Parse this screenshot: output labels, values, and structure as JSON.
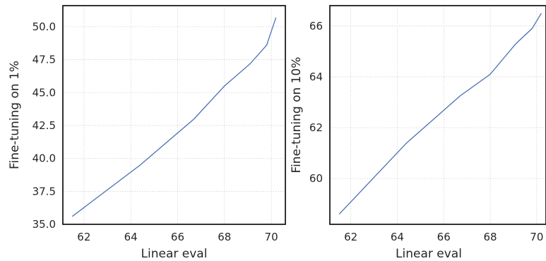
{
  "chart_data": [
    {
      "type": "line",
      "xlabel": "Linear eval",
      "ylabel": "Fine-tuning on 1%",
      "xlim": [
        61.1,
        70.6
      ],
      "ylim": [
        35.0,
        51.6
      ],
      "xticks": [
        "62",
        "64",
        "66",
        "68",
        "70"
      ],
      "yticks": [
        "35.0",
        "37.5",
        "40.0",
        "42.5",
        "45.0",
        "47.5",
        "50.0"
      ],
      "grid": true,
      "series": [
        {
          "color": "#4c72b0",
          "x": [
            61.5,
            64.4,
            66.7,
            68.0,
            69.1,
            69.8,
            70.2
          ],
          "y": [
            35.6,
            39.5,
            43.0,
            45.5,
            47.2,
            48.6,
            50.7
          ]
        }
      ]
    },
    {
      "type": "line",
      "xlabel": "Linear eval",
      "ylabel": "Fine-tuning on 10%",
      "xlim": [
        61.1,
        70.4
      ],
      "ylim": [
        58.2,
        66.8
      ],
      "xticks": [
        "62",
        "64",
        "66",
        "68",
        "70"
      ],
      "yticks": [
        "60",
        "62",
        "64",
        "66"
      ],
      "grid": true,
      "series": [
        {
          "color": "#4c72b0",
          "x": [
            61.5,
            64.4,
            66.7,
            68.0,
            69.1,
            69.8,
            70.2
          ],
          "y": [
            58.6,
            61.4,
            63.25,
            64.1,
            65.3,
            65.9,
            66.5
          ]
        }
      ]
    }
  ]
}
